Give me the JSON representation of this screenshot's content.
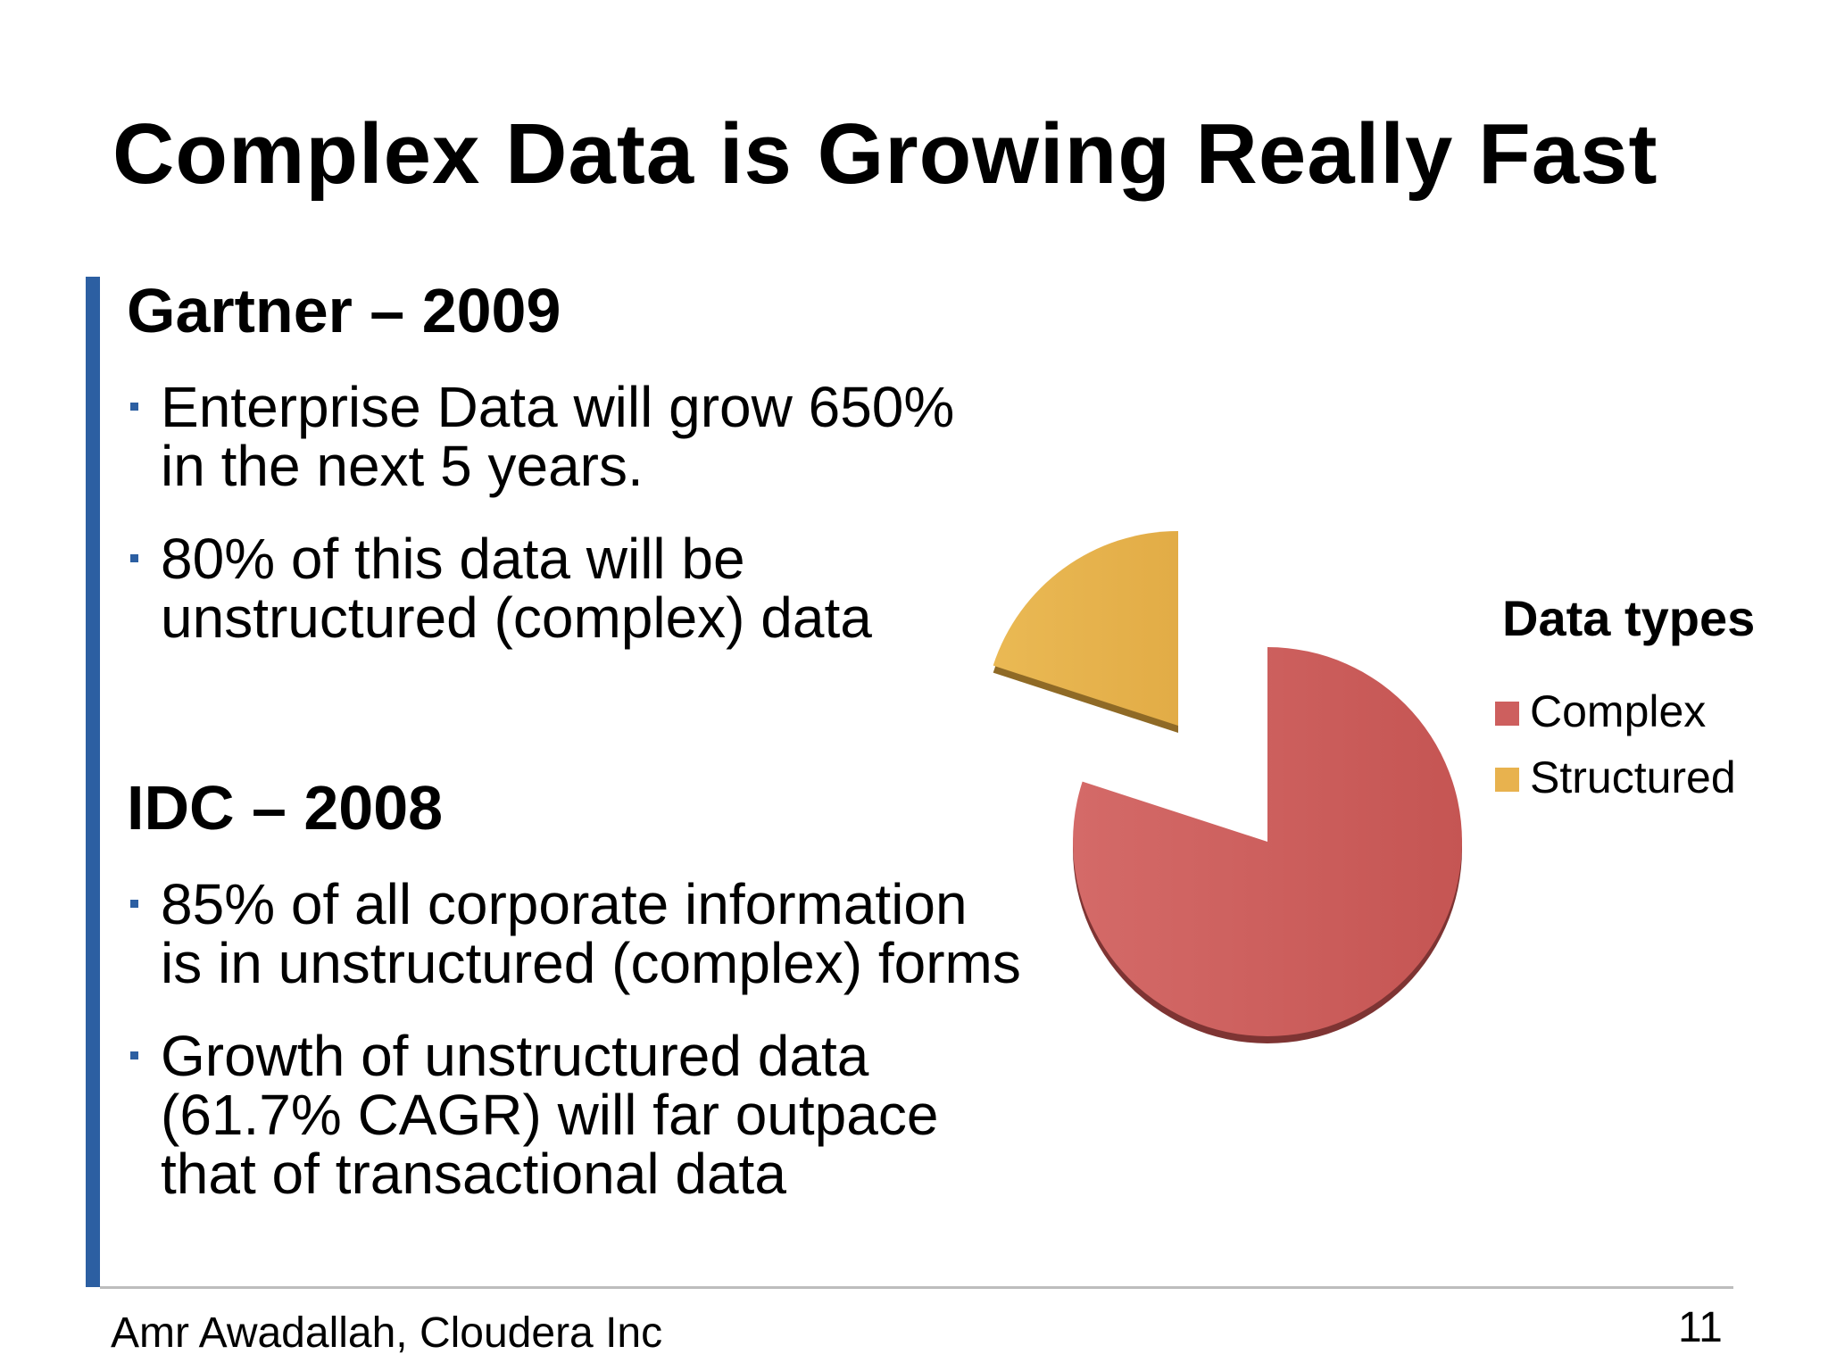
{
  "slide": {
    "title": "Complex Data is Growing Really Fast",
    "sections": [
      {
        "heading": "Gartner – 2009",
        "bullets": [
          [
            "Enterprise Data will grow 650%",
            "in the next 5 years."
          ],
          [
            "80% of this data will be",
            "unstructured (complex) data"
          ]
        ]
      },
      {
        "heading": "IDC – 2008",
        "bullets": [
          [
            "85% of all corporate information",
            "is in unstructured (complex) forms"
          ],
          [
            "Growth of unstructured data",
            "(61.7% CAGR) will far outpace",
            "that of transactional data"
          ]
        ]
      }
    ],
    "footer": {
      "author": "Amr Awadallah, Cloudera Inc",
      "page": "11"
    },
    "colors": {
      "accent": "#2c5fa2",
      "complex": "#cd5f5e",
      "structured": "#e8b24e"
    }
  },
  "chart_data": {
    "type": "pie",
    "title": "Data types",
    "labels": [
      "Complex",
      "Structured"
    ],
    "values": [
      80,
      20
    ],
    "legend_position": "right",
    "exploded": true
  }
}
